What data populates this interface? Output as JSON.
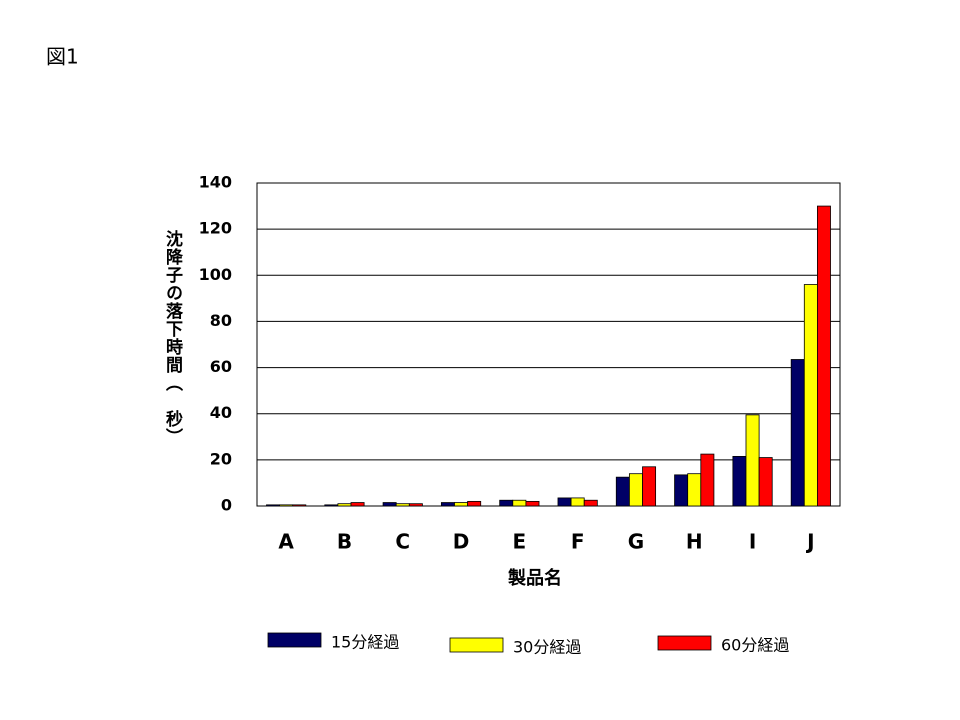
{
  "chart_data": {
    "type": "bar",
    "title": "図1",
    "ylabel": "沈降子の落下時間（　秒）",
    "xlabel": "製品名",
    "categories": [
      "A",
      "B",
      "C",
      "D",
      "E",
      "F",
      "G",
      "H",
      "I",
      "J"
    ],
    "series": [
      {
        "name": "15分経過",
        "color": "#000066",
        "values": [
          0.5,
          0.5,
          1.5,
          1.5,
          2.5,
          3.5,
          12.5,
          13.5,
          21.5,
          63.5
        ]
      },
      {
        "name": "30分経過",
        "color": "#ffff00",
        "values": [
          0.5,
          1,
          1,
          1.5,
          2.5,
          3.5,
          14,
          14,
          39.5,
          96
        ]
      },
      {
        "name": "60分経過",
        "color": "#ff0000",
        "values": [
          0.5,
          1.5,
          1,
          2,
          2,
          2.5,
          17,
          22.5,
          21,
          130
        ]
      }
    ],
    "ylim": [
      0,
      140
    ],
    "yticks": [
      0,
      20,
      40,
      60,
      80,
      100,
      120,
      140
    ],
    "grid": true,
    "legend": "bottom"
  }
}
